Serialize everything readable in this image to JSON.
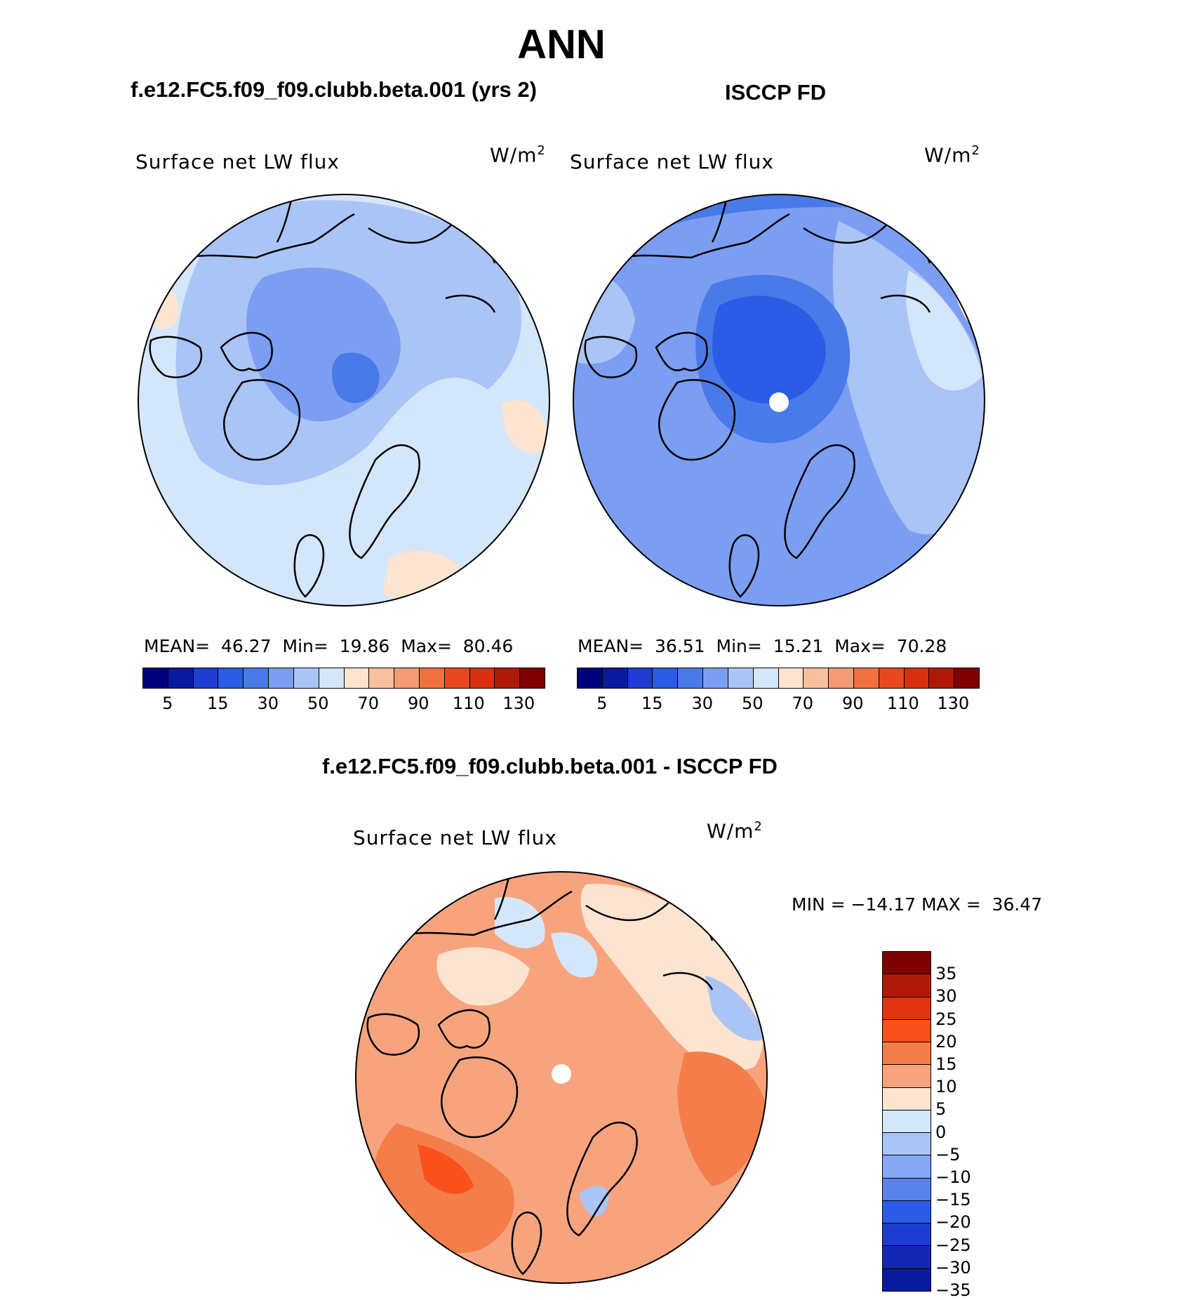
{
  "figure": {
    "title": "ANN"
  },
  "panels": [
    {
      "id": "model",
      "heading": "f.e12.FC5.f09_f09.clubb.beta.001 (yrs 2)",
      "variable": "Surface net LW flux",
      "unit_base": "W/m",
      "unit_exp": "2",
      "stats_label_mean": "MEAN=",
      "mean": "46.27",
      "stats_label_min": "Min=",
      "min": "19.86",
      "stats_label_max": "Max=",
      "max": "80.46"
    },
    {
      "id": "obs",
      "heading": "ISCCP FD",
      "variable": "Surface net LW flux",
      "unit_base": "W/m",
      "unit_exp": "2",
      "stats_label_mean": "MEAN=",
      "mean": "36.51",
      "stats_label_min": "Min=",
      "min": "15.21",
      "stats_label_max": "Max=",
      "max": "70.28"
    },
    {
      "id": "diff",
      "heading": "f.e12.FC5.f09_f09.clubb.beta.001 - ISCCP FD",
      "variable": "Surface net LW flux",
      "unit_base": "W/m",
      "unit_exp": "2",
      "minmax_text": "MIN = −14.17 MAX =  36.47"
    }
  ],
  "colorbar_abs": {
    "colors": [
      "#00007f",
      "#0a1aa0",
      "#1e3cd2",
      "#2a5ce6",
      "#4a7ae8",
      "#7b9ef2",
      "#aac4f6",
      "#d4e6fa",
      "#fde4d0",
      "#f9c0a0",
      "#f49a74",
      "#f07040",
      "#e84820",
      "#d83010",
      "#b01808",
      "#7f0000"
    ],
    "labels": [
      "5",
      "15",
      "30",
      "50",
      "70",
      "90",
      "110",
      "130"
    ]
  },
  "colorbar_diff": {
    "colors": [
      "#7f0000",
      "#b01808",
      "#e03410",
      "#f9501c",
      "#f47d4a",
      "#f7a47e",
      "#fde4d0",
      "#d4e6fa",
      "#aac4f6",
      "#86a8f2",
      "#5a82ec",
      "#2a5ce6",
      "#1e3cd2",
      "#1428b4",
      "#0a1aa0"
    ],
    "labels": [
      "35",
      "30",
      "25",
      "20",
      "15",
      "10",
      "5",
      "0",
      "−5",
      "−10",
      "−15",
      "−20",
      "−25",
      "−30",
      "−35"
    ]
  }
}
